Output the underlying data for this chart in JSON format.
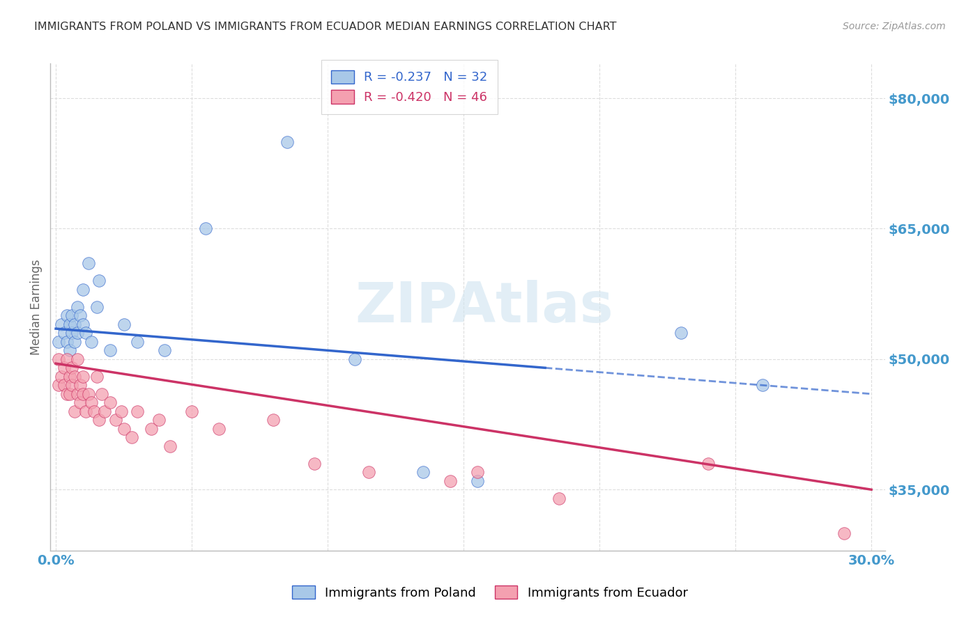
{
  "title": "IMMIGRANTS FROM POLAND VS IMMIGRANTS FROM ECUADOR MEDIAN EARNINGS CORRELATION CHART",
  "source": "Source: ZipAtlas.com",
  "ylabel": "Median Earnings",
  "yticks": [
    35000,
    50000,
    65000,
    80000
  ],
  "ytick_labels": [
    "$35,000",
    "$50,000",
    "$65,000",
    "$80,000"
  ],
  "xticks": [
    0.0,
    0.05,
    0.1,
    0.15,
    0.2,
    0.25,
    0.3
  ],
  "xlim": [
    -0.002,
    0.305
  ],
  "ylim": [
    28000,
    84000
  ],
  "legend_poland_r": "-0.237",
  "legend_poland_n": "32",
  "legend_ecuador_r": "-0.420",
  "legend_ecuador_n": "46",
  "poland_color": "#a8c8e8",
  "ecuador_color": "#f4a0b0",
  "trendline_poland_color": "#3366cc",
  "trendline_ecuador_color": "#cc3366",
  "background_color": "#ffffff",
  "grid_color": "#dddddd",
  "title_color": "#333333",
  "title_fontsize": 11.5,
  "axis_label_color": "#4499cc",
  "watermark": "ZIPAtlas",
  "poland_trend_x0": 0.0,
  "poland_trend_y0": 53500,
  "poland_trend_x1": 0.3,
  "poland_trend_y1": 46000,
  "ecuador_trend_x0": 0.0,
  "ecuador_trend_y0": 49500,
  "ecuador_trend_x1": 0.3,
  "ecuador_trend_y1": 35000,
  "poland_x": [
    0.001,
    0.002,
    0.003,
    0.004,
    0.004,
    0.005,
    0.005,
    0.006,
    0.006,
    0.007,
    0.007,
    0.008,
    0.008,
    0.009,
    0.01,
    0.01,
    0.011,
    0.012,
    0.013,
    0.015,
    0.016,
    0.02,
    0.025,
    0.03,
    0.04,
    0.055,
    0.085,
    0.11,
    0.135,
    0.155,
    0.23,
    0.26
  ],
  "poland_y": [
    52000,
    54000,
    53000,
    55000,
    52000,
    54000,
    51000,
    55000,
    53000,
    54000,
    52000,
    56000,
    53000,
    55000,
    54000,
    58000,
    53000,
    61000,
    52000,
    56000,
    59000,
    51000,
    54000,
    52000,
    51000,
    65000,
    75000,
    50000,
    37000,
    36000,
    53000,
    47000
  ],
  "ecuador_x": [
    0.001,
    0.001,
    0.002,
    0.003,
    0.003,
    0.004,
    0.004,
    0.005,
    0.005,
    0.006,
    0.006,
    0.007,
    0.007,
    0.008,
    0.008,
    0.009,
    0.009,
    0.01,
    0.01,
    0.011,
    0.012,
    0.013,
    0.014,
    0.015,
    0.016,
    0.017,
    0.018,
    0.02,
    0.022,
    0.024,
    0.025,
    0.028,
    0.03,
    0.035,
    0.038,
    0.042,
    0.05,
    0.06,
    0.08,
    0.095,
    0.115,
    0.145,
    0.155,
    0.185,
    0.24,
    0.29
  ],
  "ecuador_y": [
    50000,
    47000,
    48000,
    49000,
    47000,
    50000,
    46000,
    48000,
    46000,
    49000,
    47000,
    48000,
    44000,
    50000,
    46000,
    47000,
    45000,
    48000,
    46000,
    44000,
    46000,
    45000,
    44000,
    48000,
    43000,
    46000,
    44000,
    45000,
    43000,
    44000,
    42000,
    41000,
    44000,
    42000,
    43000,
    40000,
    44000,
    42000,
    43000,
    38000,
    37000,
    36000,
    37000,
    34000,
    38000,
    30000
  ]
}
